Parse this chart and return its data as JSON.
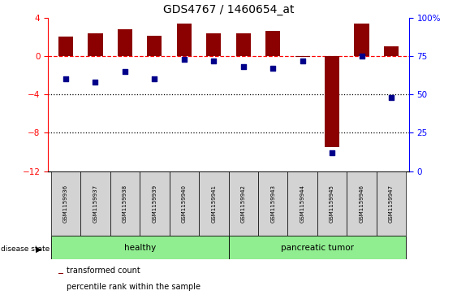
{
  "title": "GDS4767 / 1460654_at",
  "samples": [
    "GSM1159936",
    "GSM1159937",
    "GSM1159938",
    "GSM1159939",
    "GSM1159940",
    "GSM1159941",
    "GSM1159942",
    "GSM1159943",
    "GSM1159944",
    "GSM1159945",
    "GSM1159946",
    "GSM1159947"
  ],
  "red_bars": [
    2.0,
    2.4,
    2.8,
    2.1,
    3.4,
    2.4,
    2.4,
    2.6,
    -0.1,
    -9.5,
    3.4,
    1.0
  ],
  "blue_dots": [
    60,
    58,
    65,
    60,
    73,
    72,
    68,
    67,
    72,
    12,
    75,
    48
  ],
  "left_ylim": [
    -12,
    4
  ],
  "right_ylim": [
    0,
    100
  ],
  "left_yticks": [
    4,
    0,
    -4,
    -8,
    -12
  ],
  "right_yticks": [
    100,
    75,
    50,
    25,
    0
  ],
  "dotted_lines": [
    -4,
    -8
  ],
  "healthy_color": "#90EE90",
  "tumor_color": "#90EE90",
  "bar_color": "#8B0000",
  "dot_color": "#00008B",
  "bar_width": 0.5,
  "disease_label": "disease state",
  "healthy_label": "healthy",
  "tumor_label": "pancreatic tumor",
  "legend_bar": "transformed count",
  "legend_dot": "percentile rank within the sample",
  "tick_box_color": "#d3d3d3",
  "title_fontsize": 10
}
